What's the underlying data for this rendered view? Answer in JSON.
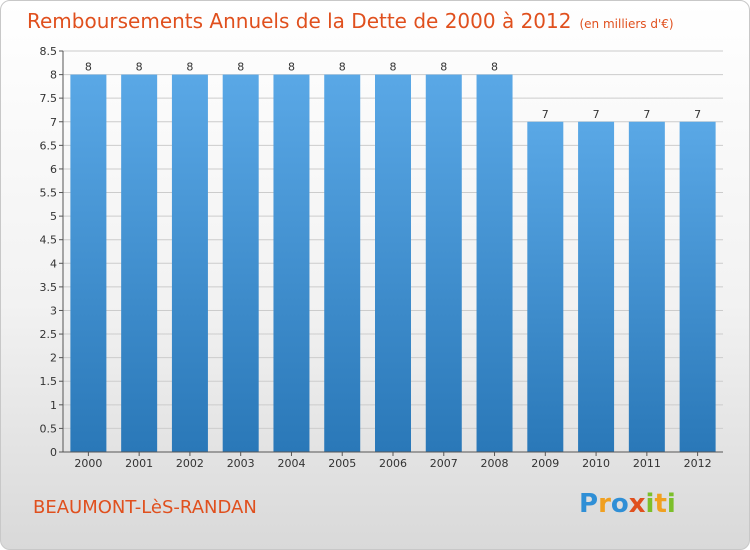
{
  "chart_data": {
    "type": "bar",
    "title": "Remboursements Annuels de la Dette de 2000 à 2012",
    "subtitle": "(en milliers d'€)",
    "categories": [
      "2000",
      "2001",
      "2002",
      "2003",
      "2004",
      "2005",
      "2006",
      "2007",
      "2008",
      "2009",
      "2010",
      "2011",
      "2012"
    ],
    "values": [
      8,
      8,
      8,
      8,
      8,
      8,
      8,
      8,
      8,
      7,
      7,
      7,
      7
    ],
    "data_labels": [
      "8",
      "8",
      "8",
      "8",
      "8",
      "8",
      "8",
      "8",
      "8",
      "7",
      "7",
      "7",
      "7"
    ],
    "ylim": [
      0,
      8.5
    ],
    "yticks": [
      0,
      0.5,
      1,
      1.5,
      2,
      2.5,
      3,
      3.5,
      4,
      4.5,
      5,
      5.5,
      6,
      6.5,
      7,
      7.5,
      8,
      8.5
    ],
    "ytick_labels": [
      "0",
      "0.5",
      "1",
      "1.5",
      "2",
      "2.5",
      "3",
      "3.5",
      "4",
      "4.5",
      "5",
      "5.5",
      "6",
      "6.5",
      "7",
      "7.5",
      "8",
      "8.5"
    ],
    "grid": true,
    "bar_color_top": "#5aa8e6",
    "bar_color_bottom": "#2a78b8",
    "xlabel": "",
    "ylabel": ""
  },
  "footer": {
    "town": "BEAUMONT-LèS-RANDAN",
    "logo_letters": [
      {
        "ch": "P",
        "color": "#2f8fd6"
      },
      {
        "ch": "r",
        "color": "#f0a020"
      },
      {
        "ch": "o",
        "color": "#2f8fd6"
      },
      {
        "ch": "x",
        "color": "#e0501e"
      },
      {
        "ch": "i",
        "color": "#7cbf2a"
      },
      {
        "ch": "t",
        "color": "#f0a020"
      },
      {
        "ch": "i",
        "color": "#7cbf2a"
      }
    ]
  },
  "colors": {
    "title": "#e0501e",
    "grid": "#cccccc",
    "axis_text": "#333333"
  }
}
